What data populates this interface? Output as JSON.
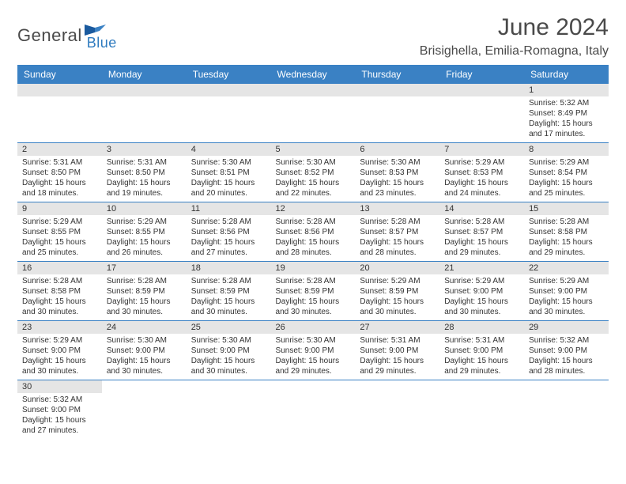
{
  "logo": {
    "text1": "General",
    "text2": "Blue"
  },
  "title": "June 2024",
  "location": "Brisighella, Emilia-Romagna, Italy",
  "colors": {
    "header_bg": "#3a81c4",
    "header_fg": "#ffffff",
    "daynum_bg": "#e5e5e5",
    "border": "#3a81c4",
    "text": "#333333",
    "logo_gray": "#4a4a4a",
    "logo_blue": "#2f7bbf"
  },
  "weekdays": [
    "Sunday",
    "Monday",
    "Tuesday",
    "Wednesday",
    "Thursday",
    "Friday",
    "Saturday"
  ],
  "weeks": [
    [
      null,
      null,
      null,
      null,
      null,
      null,
      {
        "n": "1",
        "sr": "Sunrise: 5:32 AM",
        "ss": "Sunset: 8:49 PM",
        "d1": "Daylight: 15 hours",
        "d2": "and 17 minutes."
      }
    ],
    [
      {
        "n": "2",
        "sr": "Sunrise: 5:31 AM",
        "ss": "Sunset: 8:50 PM",
        "d1": "Daylight: 15 hours",
        "d2": "and 18 minutes."
      },
      {
        "n": "3",
        "sr": "Sunrise: 5:31 AM",
        "ss": "Sunset: 8:50 PM",
        "d1": "Daylight: 15 hours",
        "d2": "and 19 minutes."
      },
      {
        "n": "4",
        "sr": "Sunrise: 5:30 AM",
        "ss": "Sunset: 8:51 PM",
        "d1": "Daylight: 15 hours",
        "d2": "and 20 minutes."
      },
      {
        "n": "5",
        "sr": "Sunrise: 5:30 AM",
        "ss": "Sunset: 8:52 PM",
        "d1": "Daylight: 15 hours",
        "d2": "and 22 minutes."
      },
      {
        "n": "6",
        "sr": "Sunrise: 5:30 AM",
        "ss": "Sunset: 8:53 PM",
        "d1": "Daylight: 15 hours",
        "d2": "and 23 minutes."
      },
      {
        "n": "7",
        "sr": "Sunrise: 5:29 AM",
        "ss": "Sunset: 8:53 PM",
        "d1": "Daylight: 15 hours",
        "d2": "and 24 minutes."
      },
      {
        "n": "8",
        "sr": "Sunrise: 5:29 AM",
        "ss": "Sunset: 8:54 PM",
        "d1": "Daylight: 15 hours",
        "d2": "and 25 minutes."
      }
    ],
    [
      {
        "n": "9",
        "sr": "Sunrise: 5:29 AM",
        "ss": "Sunset: 8:55 PM",
        "d1": "Daylight: 15 hours",
        "d2": "and 25 minutes."
      },
      {
        "n": "10",
        "sr": "Sunrise: 5:29 AM",
        "ss": "Sunset: 8:55 PM",
        "d1": "Daylight: 15 hours",
        "d2": "and 26 minutes."
      },
      {
        "n": "11",
        "sr": "Sunrise: 5:28 AM",
        "ss": "Sunset: 8:56 PM",
        "d1": "Daylight: 15 hours",
        "d2": "and 27 minutes."
      },
      {
        "n": "12",
        "sr": "Sunrise: 5:28 AM",
        "ss": "Sunset: 8:56 PM",
        "d1": "Daylight: 15 hours",
        "d2": "and 28 minutes."
      },
      {
        "n": "13",
        "sr": "Sunrise: 5:28 AM",
        "ss": "Sunset: 8:57 PM",
        "d1": "Daylight: 15 hours",
        "d2": "and 28 minutes."
      },
      {
        "n": "14",
        "sr": "Sunrise: 5:28 AM",
        "ss": "Sunset: 8:57 PM",
        "d1": "Daylight: 15 hours",
        "d2": "and 29 minutes."
      },
      {
        "n": "15",
        "sr": "Sunrise: 5:28 AM",
        "ss": "Sunset: 8:58 PM",
        "d1": "Daylight: 15 hours",
        "d2": "and 29 minutes."
      }
    ],
    [
      {
        "n": "16",
        "sr": "Sunrise: 5:28 AM",
        "ss": "Sunset: 8:58 PM",
        "d1": "Daylight: 15 hours",
        "d2": "and 30 minutes."
      },
      {
        "n": "17",
        "sr": "Sunrise: 5:28 AM",
        "ss": "Sunset: 8:59 PM",
        "d1": "Daylight: 15 hours",
        "d2": "and 30 minutes."
      },
      {
        "n": "18",
        "sr": "Sunrise: 5:28 AM",
        "ss": "Sunset: 8:59 PM",
        "d1": "Daylight: 15 hours",
        "d2": "and 30 minutes."
      },
      {
        "n": "19",
        "sr": "Sunrise: 5:28 AM",
        "ss": "Sunset: 8:59 PM",
        "d1": "Daylight: 15 hours",
        "d2": "and 30 minutes."
      },
      {
        "n": "20",
        "sr": "Sunrise: 5:29 AM",
        "ss": "Sunset: 8:59 PM",
        "d1": "Daylight: 15 hours",
        "d2": "and 30 minutes."
      },
      {
        "n": "21",
        "sr": "Sunrise: 5:29 AM",
        "ss": "Sunset: 9:00 PM",
        "d1": "Daylight: 15 hours",
        "d2": "and 30 minutes."
      },
      {
        "n": "22",
        "sr": "Sunrise: 5:29 AM",
        "ss": "Sunset: 9:00 PM",
        "d1": "Daylight: 15 hours",
        "d2": "and 30 minutes."
      }
    ],
    [
      {
        "n": "23",
        "sr": "Sunrise: 5:29 AM",
        "ss": "Sunset: 9:00 PM",
        "d1": "Daylight: 15 hours",
        "d2": "and 30 minutes."
      },
      {
        "n": "24",
        "sr": "Sunrise: 5:30 AM",
        "ss": "Sunset: 9:00 PM",
        "d1": "Daylight: 15 hours",
        "d2": "and 30 minutes."
      },
      {
        "n": "25",
        "sr": "Sunrise: 5:30 AM",
        "ss": "Sunset: 9:00 PM",
        "d1": "Daylight: 15 hours",
        "d2": "and 30 minutes."
      },
      {
        "n": "26",
        "sr": "Sunrise: 5:30 AM",
        "ss": "Sunset: 9:00 PM",
        "d1": "Daylight: 15 hours",
        "d2": "and 29 minutes."
      },
      {
        "n": "27",
        "sr": "Sunrise: 5:31 AM",
        "ss": "Sunset: 9:00 PM",
        "d1": "Daylight: 15 hours",
        "d2": "and 29 minutes."
      },
      {
        "n": "28",
        "sr": "Sunrise: 5:31 AM",
        "ss": "Sunset: 9:00 PM",
        "d1": "Daylight: 15 hours",
        "d2": "and 29 minutes."
      },
      {
        "n": "29",
        "sr": "Sunrise: 5:32 AM",
        "ss": "Sunset: 9:00 PM",
        "d1": "Daylight: 15 hours",
        "d2": "and 28 minutes."
      }
    ],
    [
      {
        "n": "30",
        "sr": "Sunrise: 5:32 AM",
        "ss": "Sunset: 9:00 PM",
        "d1": "Daylight: 15 hours",
        "d2": "and 27 minutes."
      },
      null,
      null,
      null,
      null,
      null,
      null
    ]
  ]
}
